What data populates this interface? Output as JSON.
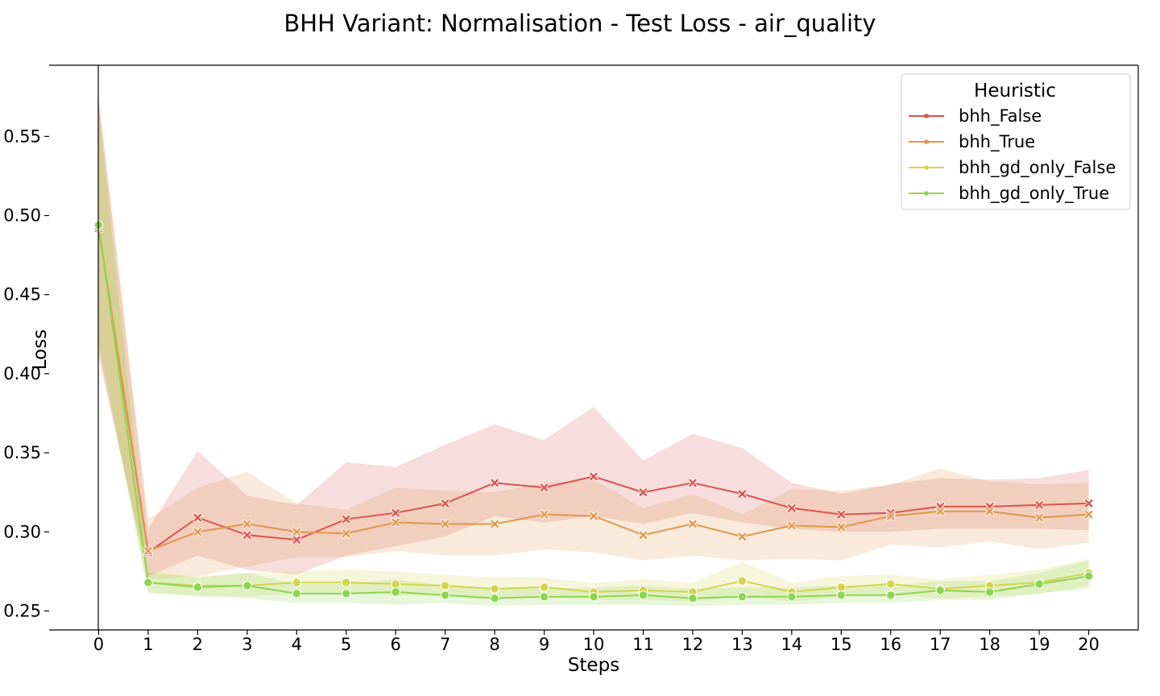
{
  "chart_data": {
    "type": "line",
    "title": "BHH Variant: Normalisation - Test Loss - air_quality",
    "xlabel": "Steps",
    "ylabel": "Loss",
    "x": [
      0,
      1,
      2,
      3,
      4,
      5,
      6,
      7,
      8,
      9,
      10,
      11,
      12,
      13,
      14,
      15,
      16,
      17,
      18,
      19,
      20
    ],
    "xlim": [
      -1,
      21
    ],
    "ylim": [
      0.238,
      0.595
    ],
    "yticks": [
      0.25,
      0.3,
      0.35,
      0.4,
      0.45,
      0.5,
      0.55
    ],
    "ytick_labels": [
      "0.25",
      "0.30",
      "0.35",
      "0.40",
      "0.45",
      "0.50",
      "0.55"
    ],
    "xtick_labels": [
      "0",
      "1",
      "2",
      "3",
      "4",
      "5",
      "6",
      "7",
      "8",
      "9",
      "10",
      "11",
      "12",
      "13",
      "14",
      "15",
      "16",
      "17",
      "18",
      "19",
      "20"
    ],
    "grid": false,
    "legend": {
      "title": "Heuristic",
      "position": "top-right"
    },
    "series": [
      {
        "name": "bhh_False",
        "color": "#d9534f",
        "marker": "x",
        "values": [
          0.492,
          0.287,
          0.309,
          0.298,
          0.295,
          0.308,
          0.312,
          0.318,
          0.331,
          0.328,
          0.335,
          0.325,
          0.331,
          0.324,
          0.315,
          0.311,
          0.312,
          0.316,
          0.316,
          0.317,
          0.318
        ],
        "lower": [
          0.41,
          0.272,
          0.285,
          0.276,
          0.273,
          0.285,
          0.291,
          0.297,
          0.31,
          0.306,
          0.31,
          0.305,
          0.312,
          0.306,
          0.302,
          0.3,
          0.3,
          0.302,
          0.302,
          0.302,
          0.301
        ],
        "upper": [
          0.575,
          0.302,
          0.351,
          0.323,
          0.317,
          0.344,
          0.341,
          0.355,
          0.368,
          0.358,
          0.379,
          0.345,
          0.362,
          0.353,
          0.331,
          0.324,
          0.33,
          0.334,
          0.333,
          0.334,
          0.339
        ]
      },
      {
        "name": "bhh_True",
        "color": "#e0974a",
        "marker": "x",
        "values": [
          0.493,
          0.288,
          0.3,
          0.305,
          0.3,
          0.299,
          0.306,
          0.305,
          0.305,
          0.311,
          0.31,
          0.298,
          0.305,
          0.297,
          0.304,
          0.303,
          0.31,
          0.313,
          0.313,
          0.309,
          0.311
        ],
        "lower": [
          0.415,
          0.27,
          0.272,
          0.278,
          0.284,
          0.284,
          0.288,
          0.285,
          0.285,
          0.289,
          0.287,
          0.282,
          0.285,
          0.282,
          0.283,
          0.282,
          0.292,
          0.29,
          0.294,
          0.289,
          0.293
        ],
        "upper": [
          0.572,
          0.308,
          0.328,
          0.338,
          0.318,
          0.314,
          0.328,
          0.326,
          0.325,
          0.331,
          0.333,
          0.315,
          0.324,
          0.311,
          0.327,
          0.326,
          0.33,
          0.34,
          0.332,
          0.33,
          0.331
        ]
      },
      {
        "name": "bhh_gd_only_False",
        "color": "#d4d44e",
        "marker": "o",
        "values": [
          0.494,
          0.268,
          0.266,
          0.266,
          0.268,
          0.268,
          0.267,
          0.266,
          0.264,
          0.265,
          0.262,
          0.263,
          0.262,
          0.269,
          0.262,
          0.265,
          0.267,
          0.264,
          0.266,
          0.268,
          0.274
        ],
        "lower": [
          0.42,
          0.261,
          0.26,
          0.259,
          0.261,
          0.262,
          0.26,
          0.259,
          0.258,
          0.259,
          0.257,
          0.257,
          0.256,
          0.259,
          0.256,
          0.259,
          0.26,
          0.258,
          0.259,
          0.261,
          0.266
        ],
        "upper": [
          0.566,
          0.275,
          0.272,
          0.274,
          0.275,
          0.276,
          0.275,
          0.273,
          0.271,
          0.271,
          0.268,
          0.27,
          0.268,
          0.281,
          0.268,
          0.272,
          0.273,
          0.27,
          0.273,
          0.276,
          0.283
        ]
      },
      {
        "name": "bhh_gd_only_True",
        "color": "#8cd650",
        "marker": "o",
        "values": [
          0.494,
          0.268,
          0.265,
          0.266,
          0.261,
          0.261,
          0.262,
          0.26,
          0.258,
          0.259,
          0.259,
          0.26,
          0.258,
          0.259,
          0.259,
          0.26,
          0.26,
          0.263,
          0.262,
          0.267,
          0.272
        ],
        "lower": [
          0.418,
          0.262,
          0.259,
          0.258,
          0.255,
          0.255,
          0.254,
          0.255,
          0.253,
          0.254,
          0.254,
          0.254,
          0.253,
          0.254,
          0.254,
          0.255,
          0.255,
          0.257,
          0.257,
          0.261,
          0.264
        ],
        "upper": [
          0.568,
          0.274,
          0.271,
          0.274,
          0.267,
          0.267,
          0.27,
          0.266,
          0.264,
          0.264,
          0.265,
          0.266,
          0.264,
          0.265,
          0.265,
          0.266,
          0.266,
          0.269,
          0.269,
          0.274,
          0.282
        ]
      }
    ]
  }
}
